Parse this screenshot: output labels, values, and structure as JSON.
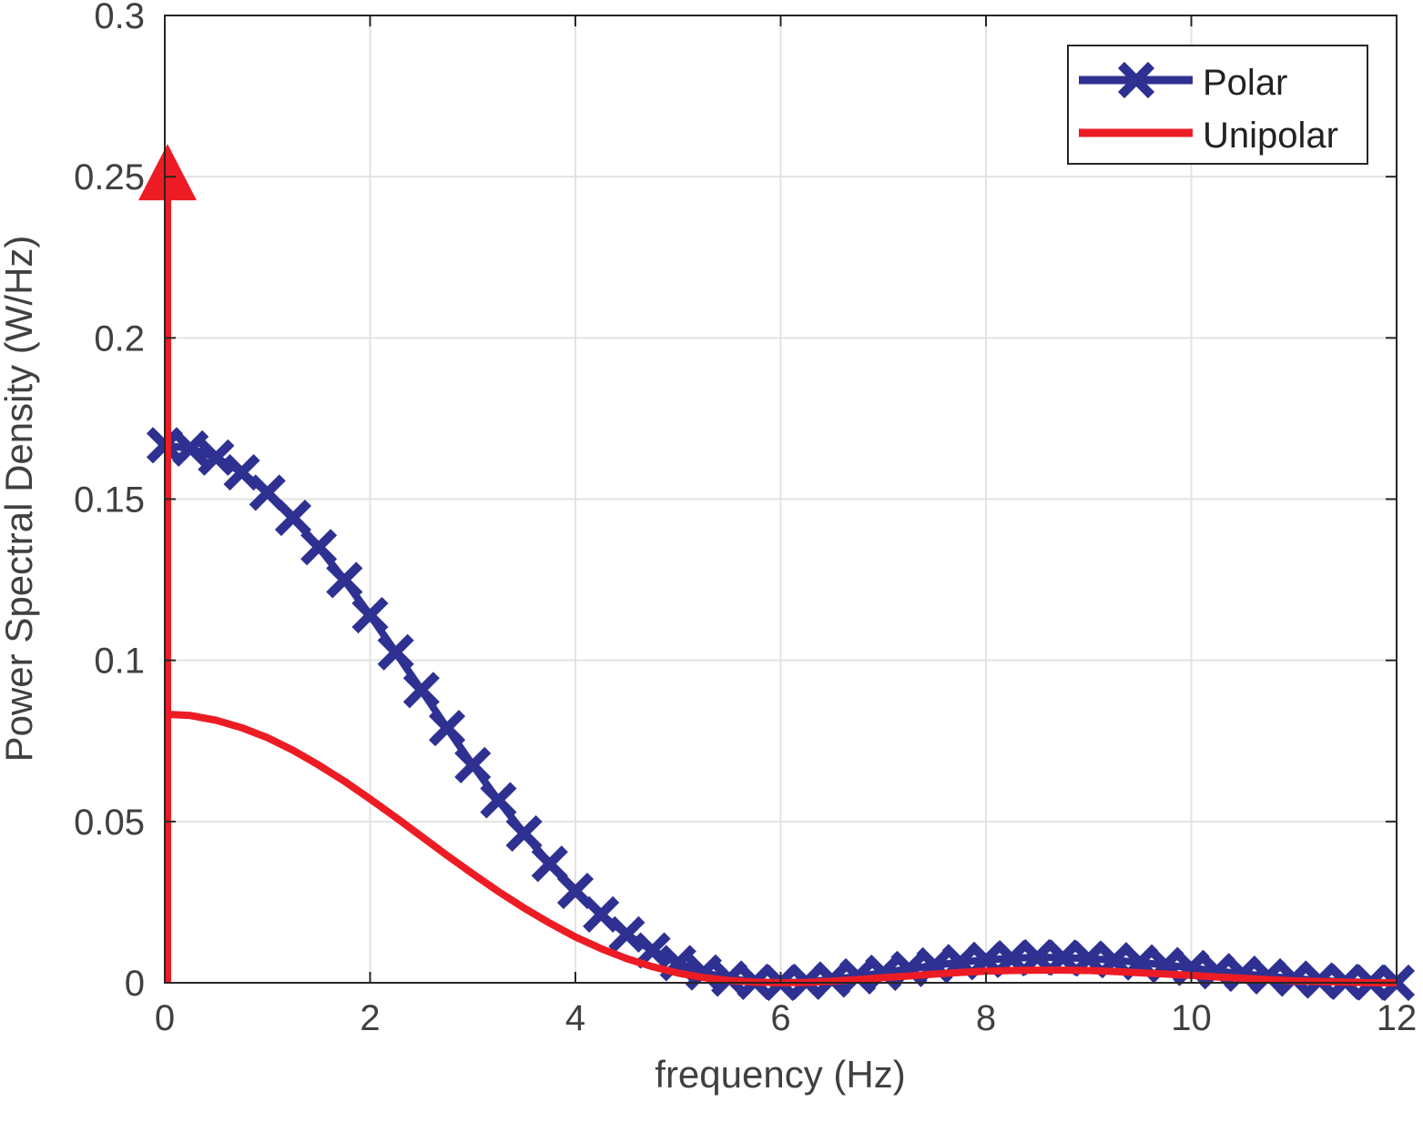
{
  "chart_data": {
    "type": "line",
    "title": "",
    "xlabel": "frequency (Hz)",
    "ylabel": "Power Spectral Density (W/Hz)",
    "xlim": [
      0,
      12
    ],
    "ylim": [
      0,
      0.3
    ],
    "xticks": [
      "0",
      "2",
      "4",
      "6",
      "8",
      "10",
      "12"
    ],
    "xtick_values": [
      0,
      2,
      4,
      6,
      8,
      10,
      12
    ],
    "yticks": [
      "0",
      "0.05",
      "0.1",
      "0.15",
      "0.2",
      "0.25",
      "0.3"
    ],
    "ytick_values": [
      0,
      0.05,
      0.1,
      0.15,
      0.2,
      0.25,
      0.3
    ],
    "grid": true,
    "legend_position": "top-right",
    "x": [
      0,
      0.25,
      0.5,
      0.75,
      1,
      1.25,
      1.5,
      1.75,
      2,
      2.25,
      2.5,
      2.75,
      3,
      3.25,
      3.5,
      3.75,
      4,
      4.25,
      4.5,
      4.75,
      5,
      5.25,
      5.5,
      5.75,
      6,
      6.25,
      6.5,
      6.75,
      7,
      7.25,
      7.5,
      7.75,
      8,
      8.25,
      8.5,
      8.75,
      9,
      9.25,
      9.5,
      9.75,
      10,
      10.25,
      10.5,
      10.75,
      11,
      11.25,
      11.5,
      11.75,
      12
    ],
    "series": [
      {
        "name": "Polar",
        "color": "#2E3192",
        "marker": "x",
        "values": [
          0.1667,
          0.1657,
          0.1629,
          0.1583,
          0.152,
          0.1442,
          0.1351,
          0.1249,
          0.114,
          0.1025,
          0.0908,
          0.079,
          0.0675,
          0.0566,
          0.0463,
          0.0369,
          0.0285,
          0.0212,
          0.015,
          0.01,
          0.0061,
          0.0032,
          0.0013,
          0.0003,
          0,
          0.0003,
          0.001,
          0.002,
          0.0031,
          0.0043,
          0.0054,
          0.0064,
          0.0071,
          0.0076,
          0.0079,
          0.0078,
          0.0075,
          0.007,
          0.0063,
          0.0055,
          0.0046,
          0.0036,
          0.0028,
          0.002,
          0.0013,
          0.0007,
          0.0003,
          0.0001,
          0
        ]
      },
      {
        "name": "Unipolar",
        "color": "#ED1C24",
        "marker": "none",
        "values": [
          0.0833,
          0.0829,
          0.0814,
          0.0791,
          0.076,
          0.0721,
          0.0675,
          0.0625,
          0.057,
          0.0513,
          0.0454,
          0.0395,
          0.0338,
          0.0283,
          0.0232,
          0.0185,
          0.0142,
          0.0106,
          0.0075,
          0.005,
          0.003,
          0.0016,
          0.0007,
          0.0002,
          0,
          0.0001,
          0.0005,
          0.001,
          0.0016,
          0.0021,
          0.0027,
          0.0032,
          0.0036,
          0.0038,
          0.0039,
          0.0039,
          0.0038,
          0.0035,
          0.0031,
          0.0027,
          0.0023,
          0.0018,
          0.0014,
          0.001,
          0.0006,
          0.0004,
          0.0002,
          0.0,
          0
        ]
      }
    ],
    "impulse": {
      "series": "Unipolar",
      "x": 0,
      "value": 0.25
    }
  }
}
